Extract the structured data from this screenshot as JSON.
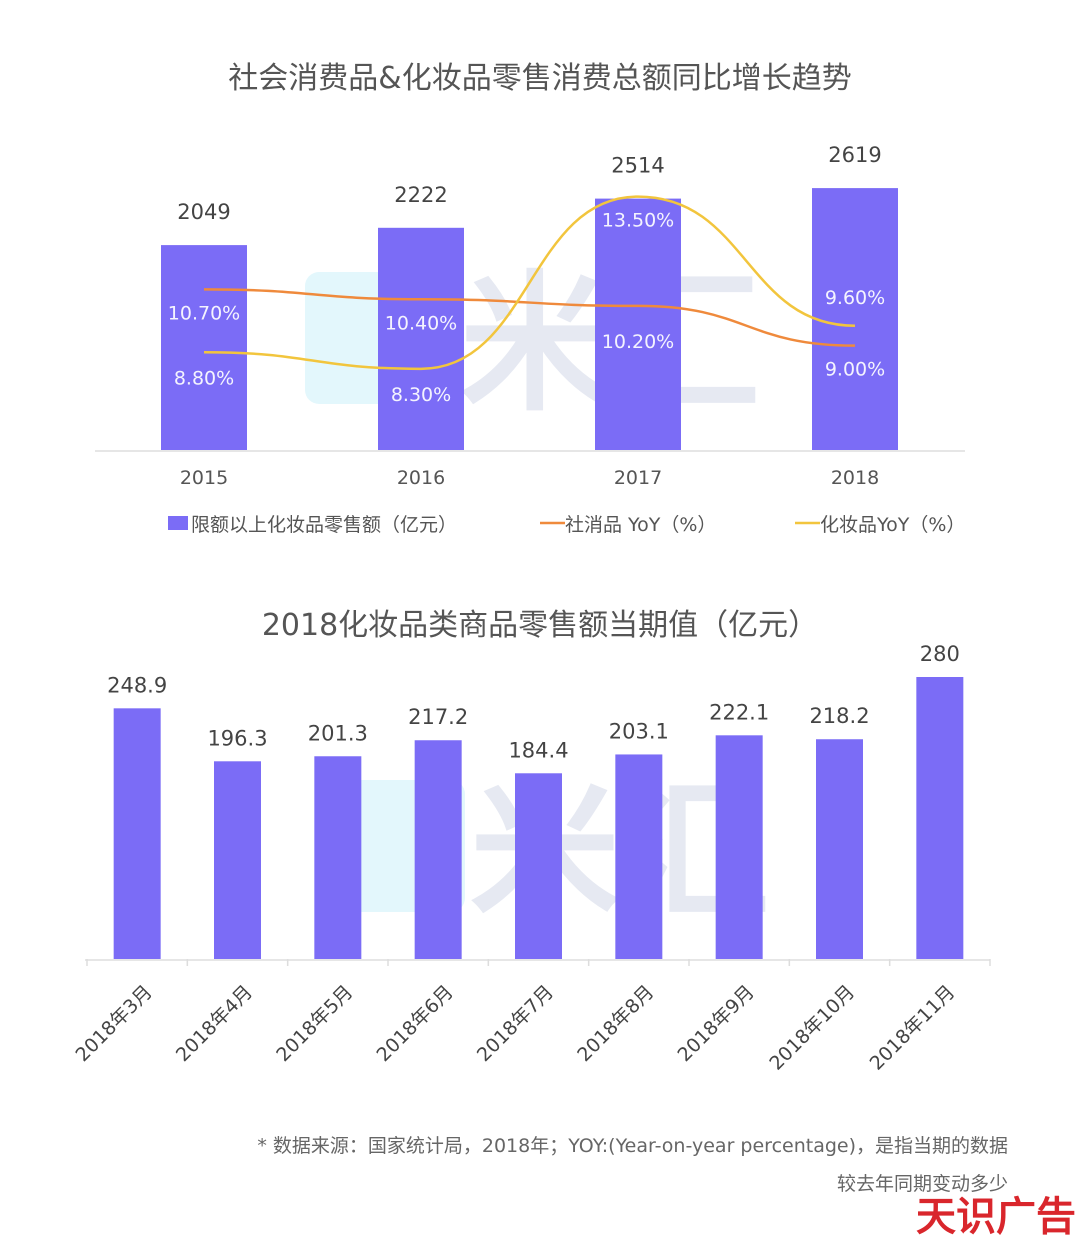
{
  "chart_data": [
    {
      "type": "bar",
      "title": "社会消费品&化妆品零售消费总额同比增长趋势",
      "categories": [
        "2015",
        "2016",
        "2017",
        "2018"
      ],
      "ylim": [
        0,
        2800
      ],
      "series": [
        {
          "name": "限额以上化妆品零售额（亿元）",
          "type": "bar",
          "values": [
            2049,
            2222,
            2514,
            2619
          ],
          "labels": [
            "2049",
            "2222",
            "2514",
            "2619"
          ]
        },
        {
          "name": "社消品 YoY（%）",
          "type": "line",
          "values": [
            10.7,
            10.4,
            10.2,
            9.0
          ],
          "labels": [
            "10.70%",
            "10.40%",
            "10.20%",
            "9.00%"
          ]
        },
        {
          "name": "化妆品YoY（%）",
          "type": "line",
          "values": [
            8.8,
            8.3,
            13.5,
            9.6
          ],
          "labels": [
            "8.80%",
            "8.30%",
            "13.50%",
            "9.60%"
          ]
        }
      ],
      "legend": "bottom",
      "grid": false
    },
    {
      "type": "bar",
      "title": "2018化妆品类商品零售额当期值（亿元）",
      "categories": [
        "2018年3月",
        "2018年4月",
        "2018年5月",
        "2018年6月",
        "2018年7月",
        "2018年8月",
        "2018年9月",
        "2018年10月",
        "2018年11月"
      ],
      "values": [
        248.9,
        196.3,
        201.3,
        217.2,
        184.4,
        203.1,
        222.1,
        218.2,
        280
      ],
      "labels": [
        "248.9",
        "196.3",
        "201.3",
        "217.2",
        "184.4",
        "203.1",
        "222.1",
        "218.2",
        "280"
      ],
      "ylim": [
        0,
        300
      ],
      "grid": false
    }
  ],
  "colors": {
    "bar": "#7b6cf6",
    "line_social": "#ef8a3c",
    "line_cosmetics": "#f2c53d",
    "brand": "#d9262c"
  },
  "watermark": "米汇",
  "footnote": {
    "line1": "* 数据来源：国家统计局，2018年；YOY:(Year-on-year percentage)，是指当期的数据",
    "line2": "较去年同期变动多少"
  },
  "brand": "天识广告"
}
